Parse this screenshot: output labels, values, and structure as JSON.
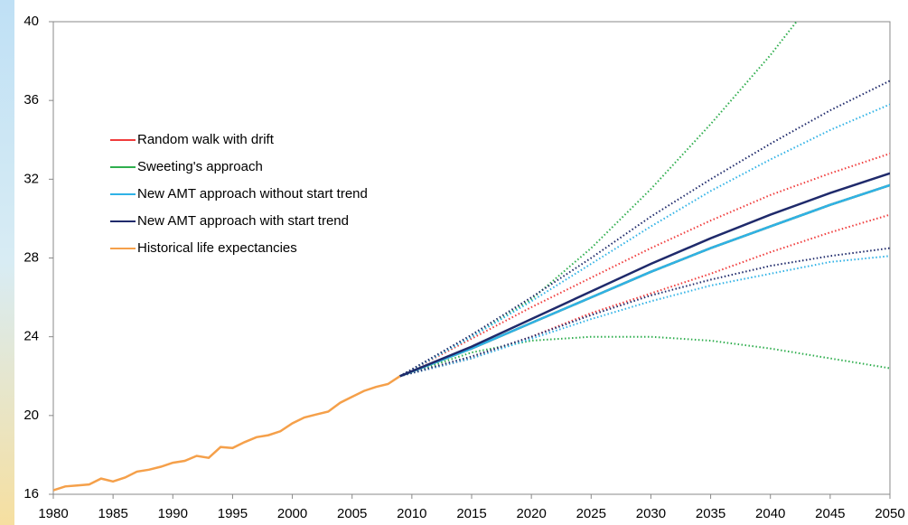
{
  "chart_data": {
    "type": "line",
    "xlim": [
      1980,
      2050
    ],
    "xticks": [
      1980,
      1985,
      1990,
      1995,
      2000,
      2005,
      2010,
      2015,
      2020,
      2025,
      2030,
      2035,
      2040,
      2045,
      2050
    ],
    "ylim": [
      16,
      40
    ],
    "yticks": [
      16,
      20,
      24,
      28,
      32,
      36,
      40
    ],
    "grid": false,
    "legend": "upper-left",
    "series": [
      {
        "name": "Random walk with drift",
        "color": "#f03c3c",
        "x": [
          2009,
          2015,
          2020,
          2025,
          2030,
          2035,
          2040,
          2045,
          2050
        ],
        "values": [
          22,
          23.4,
          24.7,
          26.0,
          27.3,
          28.5,
          29.6,
          30.7,
          31.7
        ],
        "upper": [
          22,
          23.9,
          25.5,
          27.0,
          28.5,
          29.9,
          31.2,
          32.3,
          33.3
        ],
        "lower": [
          22,
          22.9,
          24.0,
          25.2,
          26.2,
          27.2,
          28.3,
          29.3,
          30.2
        ]
      },
      {
        "name": "Sweeting's approach",
        "color": "#2fae4e",
        "x": [
          2009,
          2015,
          2020,
          2025,
          2030,
          2035,
          2040,
          2045,
          2050
        ],
        "values": [
          22,
          23.4,
          24.7,
          26.0,
          27.3,
          28.5,
          29.6,
          30.7,
          31.7
        ],
        "upper": [
          22,
          24.0,
          25.9,
          28.5,
          31.5,
          34.8,
          38.3,
          42.2,
          46.5
        ],
        "lower": [
          22,
          23.2,
          23.8,
          24.0,
          24.0,
          23.8,
          23.4,
          22.9,
          22.4
        ]
      },
      {
        "name": "New AMT approach without start trend",
        "color": "#2fb2e6",
        "x": [
          2009,
          2015,
          2020,
          2025,
          2030,
          2035,
          2040,
          2045,
          2050
        ],
        "values": [
          22,
          23.4,
          24.7,
          26.0,
          27.3,
          28.5,
          29.6,
          30.7,
          31.7
        ],
        "upper": [
          22,
          24.0,
          25.8,
          27.7,
          29.6,
          31.4,
          33.0,
          34.5,
          35.8
        ],
        "lower": [
          22,
          22.9,
          23.9,
          24.9,
          25.8,
          26.6,
          27.2,
          27.8,
          28.1
        ]
      },
      {
        "name": "New AMT approach with start trend",
        "color": "#1f2a6b",
        "x": [
          2009,
          2015,
          2020,
          2025,
          2030,
          2035,
          2040,
          2045,
          2050
        ],
        "values": [
          22,
          23.5,
          24.9,
          26.3,
          27.7,
          29.0,
          30.2,
          31.3,
          32.3
        ],
        "upper": [
          22,
          24.1,
          26.0,
          28.0,
          30.1,
          32.0,
          33.8,
          35.5,
          37.0
        ],
        "lower": [
          22,
          23.0,
          24.0,
          25.1,
          26.1,
          26.9,
          27.6,
          28.1,
          28.5
        ]
      },
      {
        "name": "Historical life expectancies",
        "color": "#f5a04a",
        "x": [
          1980,
          1981,
          1982,
          1983,
          1984,
          1985,
          1986,
          1987,
          1988,
          1989,
          1990,
          1991,
          1992,
          1993,
          1994,
          1995,
          1996,
          1997,
          1998,
          1999,
          2000,
          2001,
          2002,
          2003,
          2004,
          2005,
          2006,
          2007,
          2008,
          2009
        ],
        "values": [
          16.2,
          16.4,
          16.45,
          16.5,
          16.8,
          16.65,
          16.85,
          17.15,
          17.25,
          17.4,
          17.6,
          17.7,
          17.95,
          17.85,
          18.4,
          18.35,
          18.65,
          18.9,
          19.0,
          19.2,
          19.6,
          19.9,
          20.05,
          20.2,
          20.65,
          20.95,
          21.25,
          21.45,
          21.6,
          22.0
        ]
      }
    ]
  }
}
